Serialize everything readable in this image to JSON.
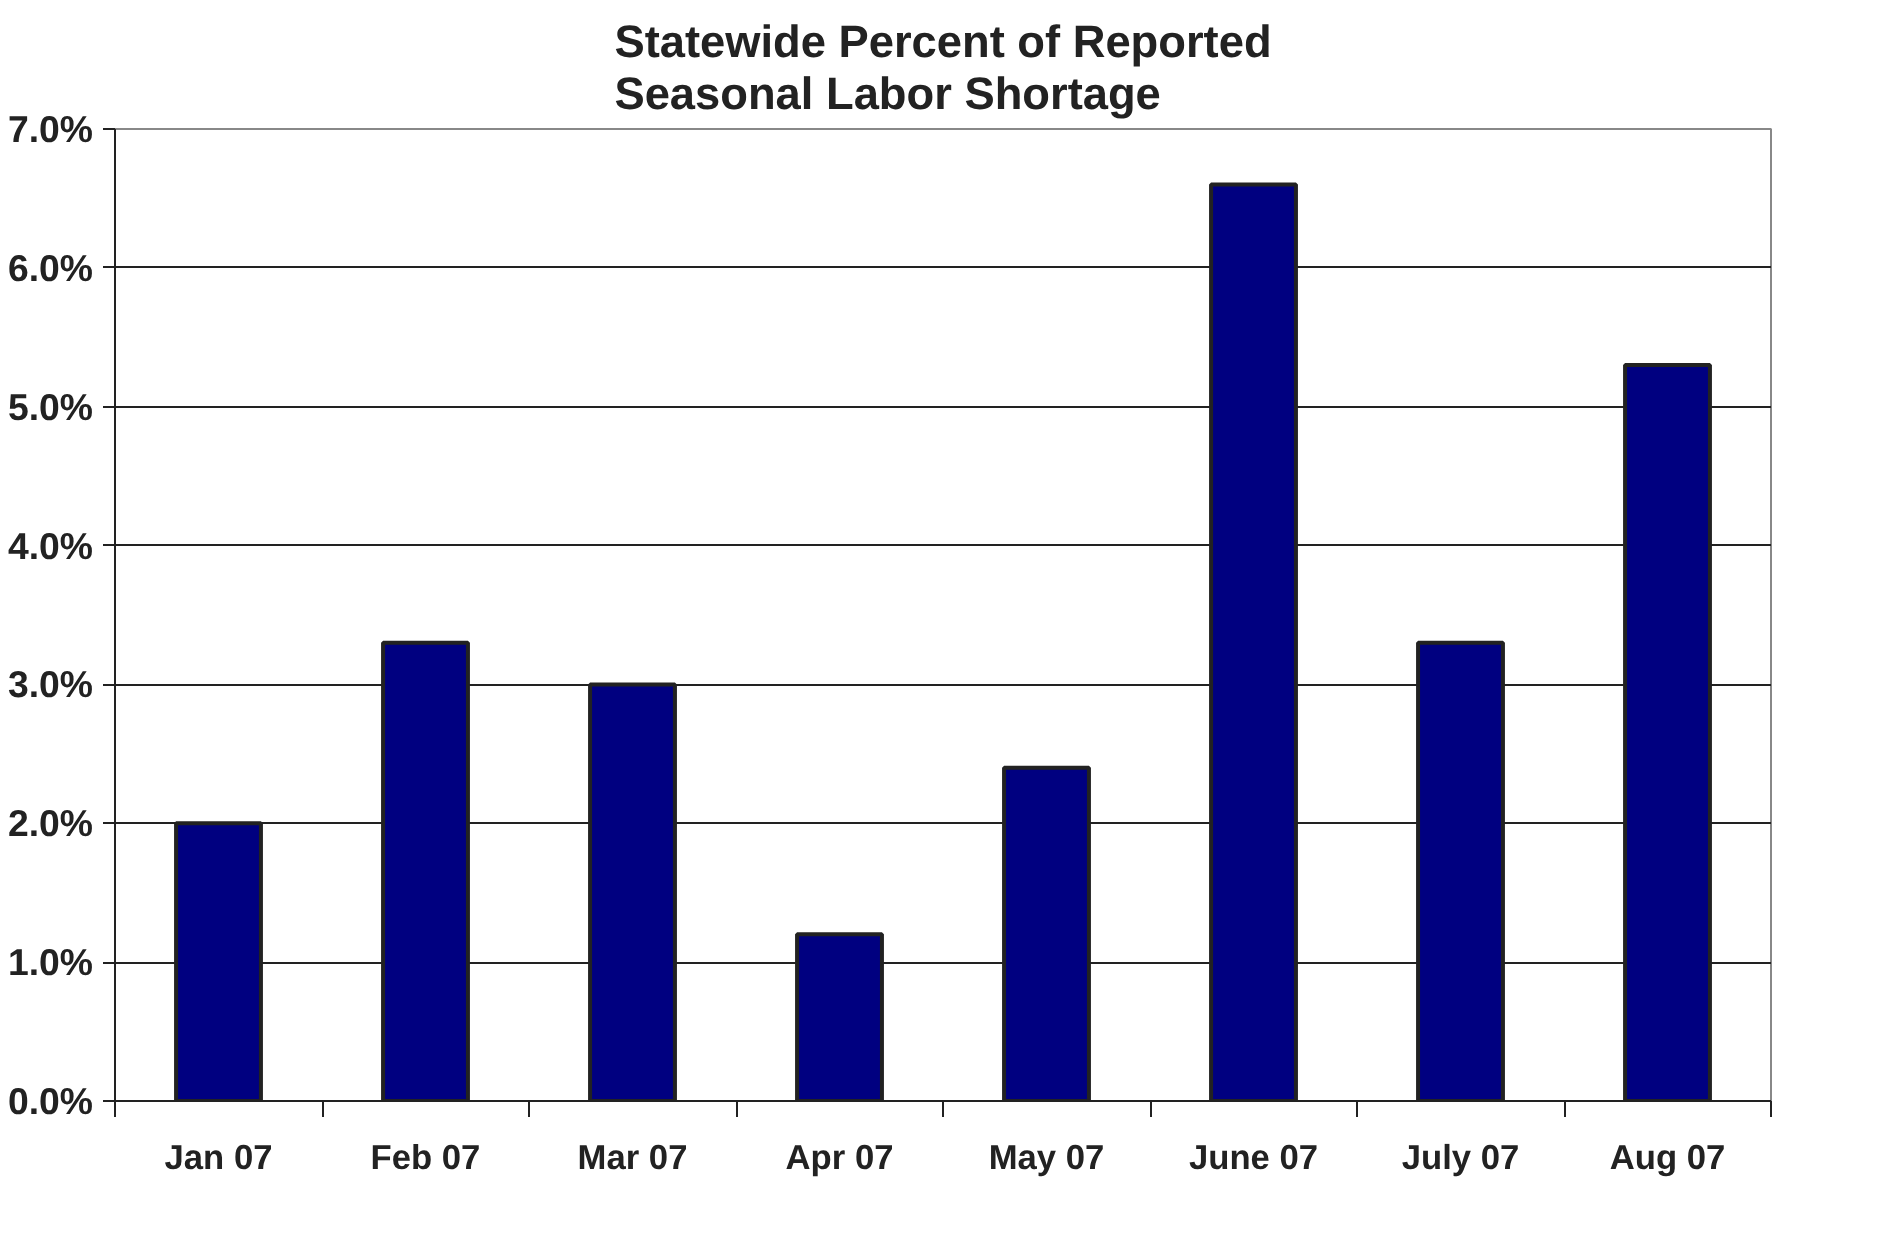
{
  "chart_data": {
    "type": "bar",
    "title": "Statewide Percent of Reported\nSeasonal Labor Shortage",
    "categories": [
      "Jan 07",
      "Feb 07",
      "Mar 07",
      "Apr 07",
      "May 07",
      "June 07",
      "July 07",
      "Aug 07"
    ],
    "values": [
      2.0,
      3.3,
      3.0,
      1.2,
      2.4,
      6.6,
      3.3,
      5.3
    ],
    "color": "#000080",
    "ylim": [
      0,
      7
    ],
    "yticks": [
      {
        "value": 0,
        "label": "0.0%"
      },
      {
        "value": 1,
        "label": "1.0%"
      },
      {
        "value": 2,
        "label": "2.0%"
      },
      {
        "value": 3,
        "label": "3.0%"
      },
      {
        "value": 4,
        "label": "4.0%"
      },
      {
        "value": 5,
        "label": "5.0%"
      },
      {
        "value": 6,
        "label": "6.0%"
      },
      {
        "value": 7,
        "label": "7.0%"
      }
    ],
    "grid": "y"
  }
}
